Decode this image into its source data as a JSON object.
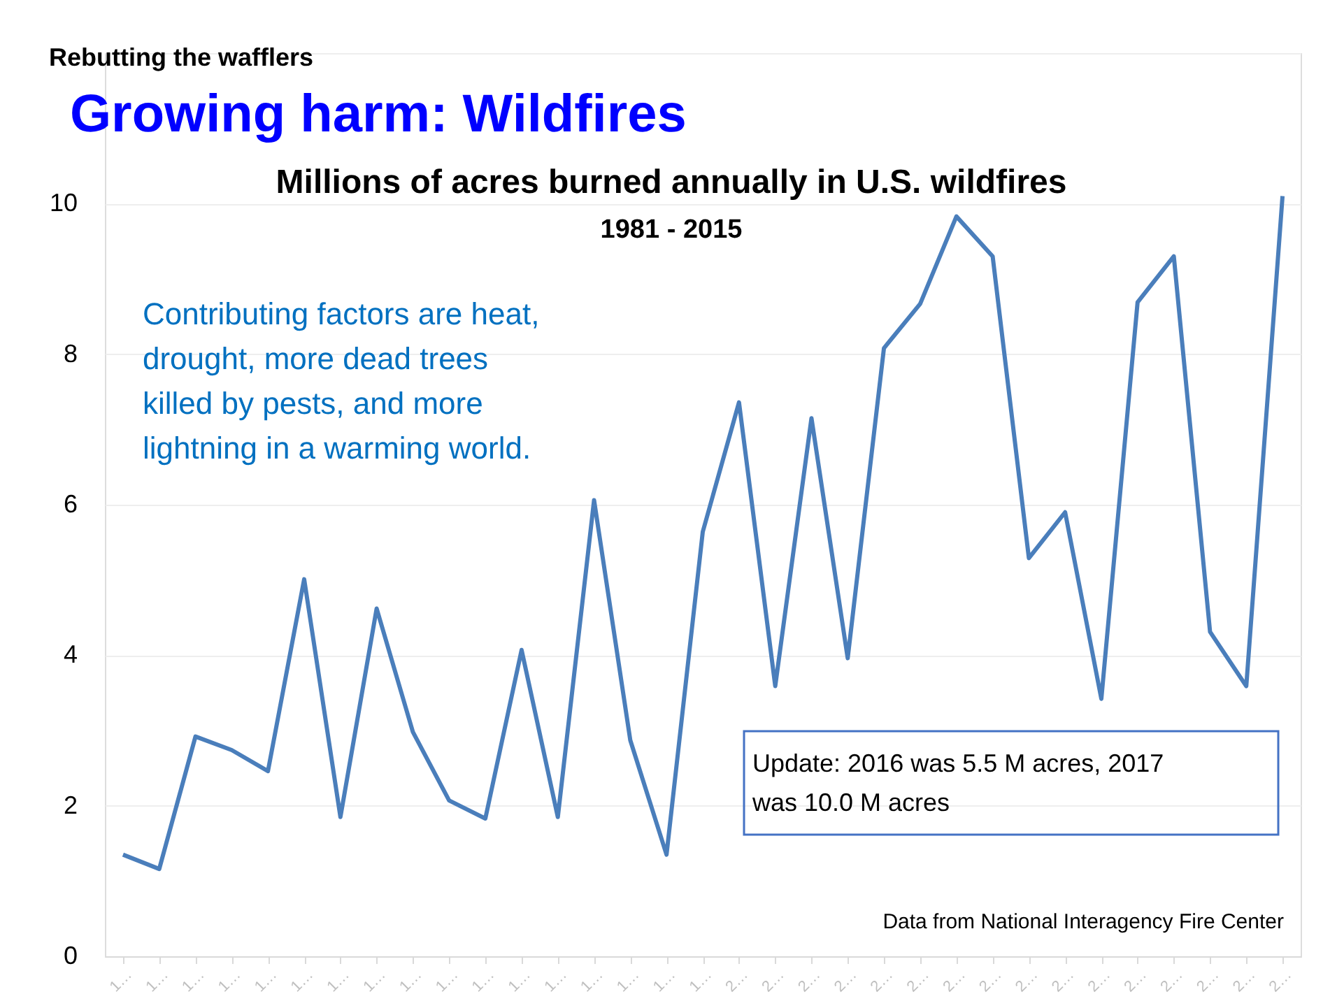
{
  "chart_data": {
    "type": "line",
    "title": "Growing harm: Wildfires",
    "subtitle": "Millions of acres burned annually in U.S. wildfires",
    "annotations": [
      "Rebutting the wafflers",
      "1981 - 2015",
      "Contributing factors are heat, drought, more dead trees killed by pests, and more lightning in a warming world.",
      "Update:  2016 was 5.5 M acres, 2017 was 10.0 M acres",
      "Data from National Interagency Fire Center"
    ],
    "categories": [
      "1…",
      "1…",
      "1…",
      "1…",
      "1…",
      "1…",
      "1…",
      "1…",
      "1…",
      "1…",
      "1…",
      "1…",
      "1…",
      "1…",
      "1…",
      "1…",
      "1…",
      "2…",
      "2…",
      "2…",
      "2…",
      "2…",
      "2…",
      "2…",
      "2…",
      "2…",
      "2…",
      "2…",
      "2…",
      "2…",
      "2…",
      "2…",
      "2…"
    ],
    "series": [
      {
        "color": "#4a7ebb",
        "values": [
          1.35,
          1.16,
          2.92,
          2.74,
          2.46,
          5.01,
          1.85,
          4.62,
          2.98,
          2.07,
          1.83,
          4.07,
          1.85,
          6.06,
          2.87,
          1.35,
          5.64,
          7.36,
          3.59,
          7.15,
          3.96,
          8.08,
          8.67,
          9.83,
          9.3,
          5.29,
          5.9,
          3.42,
          8.69,
          9.3,
          4.31,
          3.59,
          10.1
        ]
      }
    ],
    "ylim": [
      0,
      12
    ],
    "yticks": [
      0,
      2,
      4,
      6,
      8,
      10,
      {
        "value": 12,
        "label": null
      }
    ],
    "grid": "y",
    "marker": "none",
    "line_style": "solid"
  }
}
